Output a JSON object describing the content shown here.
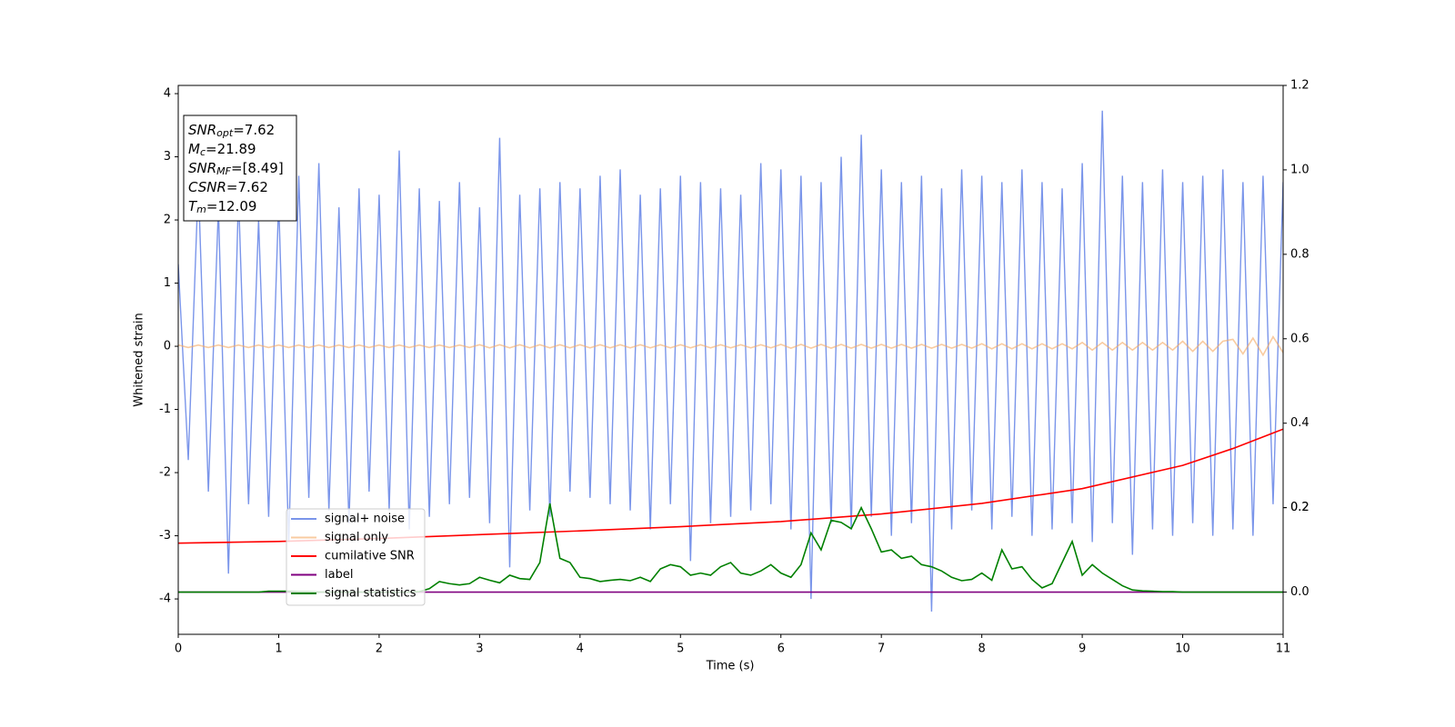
{
  "chart_data": {
    "type": "line",
    "xlabel": "Time (s)",
    "ylabel": "Whitened strain",
    "xlim": [
      0,
      11
    ],
    "xticks": [
      0,
      1,
      2,
      3,
      4,
      5,
      6,
      7,
      8,
      9,
      10,
      11
    ],
    "ylim": [
      -4.56,
      4.13
    ],
    "yticks": [
      -4,
      -3,
      -2,
      -1,
      0,
      1,
      2,
      3,
      4
    ],
    "y2lim": [
      -0.1,
      1.2
    ],
    "y2ticks": [
      {
        "value": 0,
        "label": "0.0"
      },
      0.2,
      0.4,
      0.6,
      0.8,
      {
        "value": 1,
        "label": "1.0"
      },
      0.2,
      1.2
    ],
    "annotation": [
      {
        "main": "SNR",
        "sub": "opt",
        "rest": "=7.62"
      },
      {
        "main": "M",
        "sub": "c",
        "rest": "=21.89"
      },
      {
        "main": "SNR",
        "sub": "MF",
        "rest": "=[8.49]"
      },
      {
        "main": "CSNR",
        "rest": "=7.62"
      },
      {
        "main": "T",
        "sub": "m",
        "rest": "=12.09"
      }
    ],
    "x": [
      0,
      0.1,
      0.2,
      0.3,
      0.4,
      0.5,
      0.6,
      0.7,
      0.8,
      0.9,
      1,
      1.1,
      1.2,
      1.3,
      1.4,
      1.5,
      1.6,
      1.7,
      1.8,
      1.9,
      2,
      2.1,
      2.2,
      2.3,
      2.4,
      2.5,
      2.6,
      2.7,
      2.8,
      2.9,
      3,
      3.1,
      3.2,
      3.3,
      3.4,
      3.5,
      3.6,
      3.7,
      3.8,
      3.9,
      4,
      4.1,
      4.2,
      4.3,
      4.4,
      4.5,
      4.6,
      4.7,
      4.8,
      4.9,
      5,
      5.1,
      5.2,
      5.3,
      5.4,
      5.5,
      5.6,
      5.7,
      5.8,
      5.9,
      6,
      6.1,
      6.2,
      6.3,
      6.4,
      6.5,
      6.6,
      6.7,
      6.8,
      6.9,
      7,
      7.1,
      7.2,
      7.3,
      7.4,
      7.5,
      7.6,
      7.7,
      7.8,
      7.9,
      8,
      8.1,
      8.2,
      8.3,
      8.4,
      8.5,
      8.6,
      8.7,
      8.8,
      8.9,
      9,
      9.1,
      9.2,
      9.3,
      9.4,
      9.5,
      9.6,
      9.7,
      9.8,
      9.9,
      10,
      10.1,
      10.2,
      10.3,
      10.4,
      10.5,
      10.6,
      10.7,
      10.8,
      10.9,
      11
    ],
    "series": [
      {
        "name": "signal+ noise",
        "color": "#6f8ce8",
        "opacity": 0.92,
        "values": [
          1.3,
          -1.8,
          2.6,
          -2.3,
          2.2,
          -3.6,
          2.4,
          -2.5,
          2.0,
          -2.7,
          2.3,
          -3.1,
          2.7,
          -2.4,
          2.9,
          -2.6,
          2.2,
          -2.8,
          2.5,
          -2.3,
          2.4,
          -2.6,
          3.1,
          -2.9,
          2.5,
          -2.7,
          2.3,
          -2.5,
          2.6,
          -2.4,
          2.2,
          -2.8,
          3.3,
          -3.5,
          2.4,
          -2.6,
          2.5,
          -2.7,
          2.6,
          -2.3,
          2.5,
          -2.4,
          2.7,
          -2.5,
          2.8,
          -2.6,
          2.4,
          -2.9,
          2.5,
          -2.5,
          2.7,
          -3.4,
          2.6,
          -2.8,
          2.5,
          -2.7,
          2.4,
          -2.6,
          2.9,
          -2.5,
          2.8,
          -2.9,
          2.7,
          -4.0,
          2.6,
          -2.8,
          3.0,
          -2.9,
          3.35,
          -2.7,
          2.8,
          -3.0,
          2.6,
          -2.8,
          2.7,
          -4.2,
          2.5,
          -2.9,
          2.8,
          -2.6,
          2.7,
          -2.9,
          2.6,
          -2.7,
          2.8,
          -3.0,
          2.6,
          -2.9,
          2.5,
          -2.8,
          2.9,
          -3.1,
          3.73,
          -2.8,
          2.7,
          -3.3,
          2.6,
          -2.9,
          2.8,
          -3.0,
          2.6,
          -2.8,
          2.7,
          -3.0,
          2.8,
          -2.9,
          2.6,
          -3.0,
          2.7,
          -2.5,
          2.6
        ]
      },
      {
        "name": "signal only",
        "color": "#f5a860",
        "opacity": 0.6,
        "values": [
          0.02,
          -0.02,
          0.02,
          -0.02,
          0.02,
          -0.02,
          0.02,
          -0.02,
          0.02,
          -0.02,
          0.02,
          -0.02,
          0.02,
          -0.02,
          0.02,
          -0.02,
          0.02,
          -0.02,
          0.02,
          -0.02,
          0.02,
          -0.02,
          0.02,
          -0.02,
          0.02,
          -0.02,
          0.02,
          -0.02,
          0.02,
          -0.02,
          0.025,
          -0.025,
          0.025,
          -0.025,
          0.025,
          -0.025,
          0.025,
          -0.025,
          0.025,
          -0.025,
          0.025,
          -0.025,
          0.025,
          -0.025,
          0.025,
          -0.025,
          0.025,
          -0.025,
          0.025,
          -0.025,
          0.025,
          -0.025,
          0.025,
          -0.025,
          0.025,
          -0.025,
          0.025,
          -0.025,
          0.025,
          -0.025,
          0.03,
          -0.03,
          0.03,
          -0.03,
          0.03,
          -0.03,
          0.03,
          -0.03,
          0.03,
          -0.03,
          0.03,
          -0.03,
          0.03,
          -0.03,
          0.03,
          -0.03,
          0.03,
          -0.03,
          0.03,
          -0.03,
          0.04,
          -0.04,
          0.04,
          -0.04,
          0.04,
          -0.04,
          0.04,
          -0.04,
          0.04,
          -0.04,
          0.06,
          -0.06,
          0.06,
          -0.06,
          0.06,
          -0.06,
          0.06,
          -0.06,
          0.06,
          -0.06,
          0.08,
          -0.08,
          0.08,
          -0.08,
          0.08,
          0.11,
          -0.12,
          0.13,
          -0.14,
          0.15,
          -0.1
        ]
      },
      {
        "name": "cumilative SNR",
        "color": "#ff0000",
        "axis": "y2",
        "x": [
          0,
          1,
          2,
          3,
          4,
          5,
          6,
          7,
          8,
          9,
          10,
          10.5,
          11
        ],
        "values": [
          0.116,
          0.12,
          0.127,
          0.136,
          0.145,
          0.155,
          0.167,
          0.185,
          0.21,
          0.245,
          0.3,
          0.34,
          0.386
        ]
      },
      {
        "name": "label",
        "color": "#800080",
        "axis": "y2",
        "x": [
          0,
          11
        ],
        "values": [
          0,
          0
        ]
      },
      {
        "name": "signal statistics",
        "color": "#008000",
        "axis": "y2",
        "values": [
          0,
          0,
          0,
          0,
          0,
          0,
          0,
          0,
          0,
          0.002,
          0.002,
          0.002,
          0.001,
          0.001,
          0,
          0,
          0,
          0,
          0,
          0,
          0,
          0,
          0,
          0,
          0.001,
          0.008,
          0.025,
          0.02,
          0.017,
          0.02,
          0.035,
          0.028,
          0.022,
          0.04,
          0.032,
          0.03,
          0.07,
          0.21,
          0.08,
          0.07,
          0.035,
          0.032,
          0.025,
          0.028,
          0.03,
          0.027,
          0.035,
          0.025,
          0.055,
          0.065,
          0.06,
          0.04,
          0.045,
          0.04,
          0.06,
          0.07,
          0.045,
          0.04,
          0.05,
          0.065,
          0.045,
          0.035,
          0.065,
          0.14,
          0.1,
          0.17,
          0.165,
          0.15,
          0.2,
          0.15,
          0.095,
          0.1,
          0.08,
          0.085,
          0.065,
          0.06,
          0.05,
          0.035,
          0.027,
          0.03,
          0.045,
          0.028,
          0.1,
          0.055,
          0.06,
          0.03,
          0.01,
          0.02,
          0.07,
          0.12,
          0.04,
          0.065,
          0.045,
          0.03,
          0.015,
          0.005,
          0.003,
          0.002,
          0.001,
          0.001,
          0,
          0,
          0,
          0,
          0,
          0,
          0,
          0,
          0,
          0,
          0
        ]
      }
    ]
  }
}
